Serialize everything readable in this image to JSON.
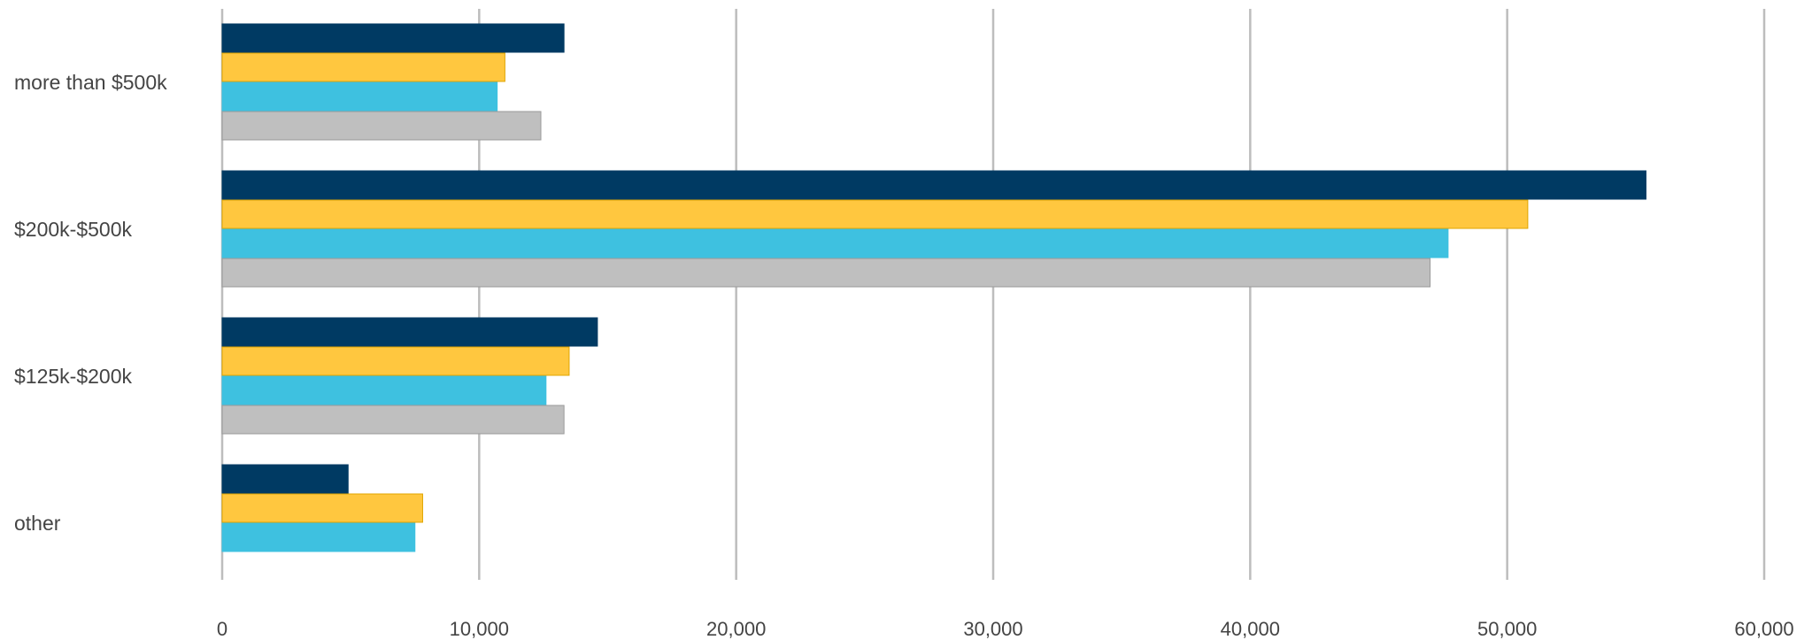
{
  "chart_data": {
    "type": "bar",
    "orientation": "horizontal",
    "title": "",
    "xlabel": "",
    "ylabel": "",
    "categories": [
      "more than $500k",
      "$200k-$500k",
      "$125k-$200k",
      "other"
    ],
    "series": [
      {
        "color": "#003a63",
        "values": [
          13300,
          55400,
          14600,
          4900
        ]
      },
      {
        "color": "#ffc73f",
        "values": [
          11000,
          50800,
          13500,
          7800
        ]
      },
      {
        "color": "#3ec1e0",
        "values": [
          10700,
          47700,
          12600,
          7500
        ]
      },
      {
        "color": "#bfbfbf",
        "values": [
          12400,
          47000,
          13300,
          null
        ]
      }
    ],
    "xlim": [
      0,
      60000
    ],
    "x_ticks": [
      0,
      10000,
      20000,
      30000,
      40000,
      50000,
      60000
    ],
    "x_tick_labels": [
      "0",
      "10,000",
      "20,000",
      "30,000",
      "40,000",
      "50,000",
      "60,000"
    ],
    "grid": true,
    "legend": "none"
  }
}
